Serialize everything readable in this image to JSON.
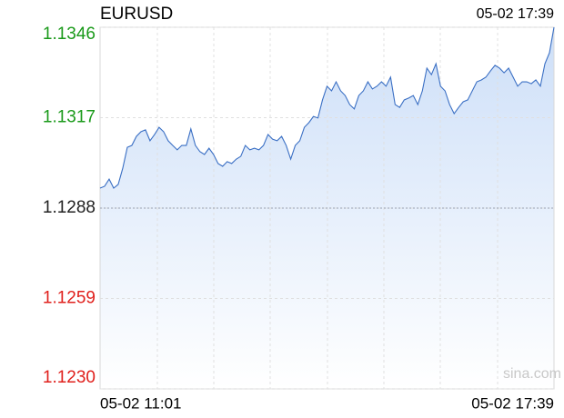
{
  "chart_data": {
    "type": "area",
    "title": "EURUSD",
    "time_label": "05-02 17:39",
    "x_labels": [
      "05-02 11:01",
      "05-02 17:39"
    ],
    "watermark": "sina.com",
    "color": "#3a6fc4",
    "fill_color": "#cddff8",
    "up_color": "#1a9a1a",
    "down_color": "#e0201c",
    "reference_color": "#222222",
    "reference_line": 1.1288,
    "ylim": [
      1.123,
      1.1346
    ],
    "yticks": [
      1.1346,
      1.1317,
      1.1288,
      1.1259,
      {
        "value": 1.123,
        "label": "1.1230"
      }
    ],
    "grid": true,
    "values": [
      1.12944,
      1.1295,
      1.12973,
      1.12944,
      1.12956,
      1.13008,
      1.13075,
      1.13081,
      1.1311,
      1.13125,
      1.13131,
      1.13096,
      1.13116,
      1.13139,
      1.13125,
      1.13096,
      1.13081,
      1.13067,
      1.13081,
      1.13081,
      1.13134,
      1.13081,
      1.13061,
      1.13052,
      1.13072,
      1.13052,
      1.13023,
      1.13014,
      1.13029,
      1.13023,
      1.13037,
      1.13046,
      1.13081,
      1.13067,
      1.13072,
      1.13067,
      1.13081,
      1.13116,
      1.13101,
      1.13096,
      1.1311,
      1.13081,
      1.13037,
      1.13081,
      1.13096,
      1.13139,
      1.13154,
      1.13174,
      1.13169,
      1.13227,
      1.13271,
      1.13256,
      1.13285,
      1.13256,
      1.13241,
      1.13212,
      1.13198,
      1.13241,
      1.13256,
      1.13285,
      1.13262,
      1.13271,
      1.13285,
      1.13271,
      1.133,
      1.13212,
      1.13203,
      1.13227,
      1.13233,
      1.13241,
      1.13212,
      1.13256,
      1.13329,
      1.13308,
      1.13343,
      1.13271,
      1.13256,
      1.13212,
      1.13183,
      1.13203,
      1.13221,
      1.13227,
      1.13256,
      1.13285,
      1.13291,
      1.133,
      1.1332,
      1.13338,
      1.13329,
      1.13314,
      1.13329,
      1.133,
      1.13271,
      1.13285,
      1.13285,
      1.13279,
      1.13291,
      1.13271,
      1.13343,
      1.13378,
      1.1346
    ]
  }
}
